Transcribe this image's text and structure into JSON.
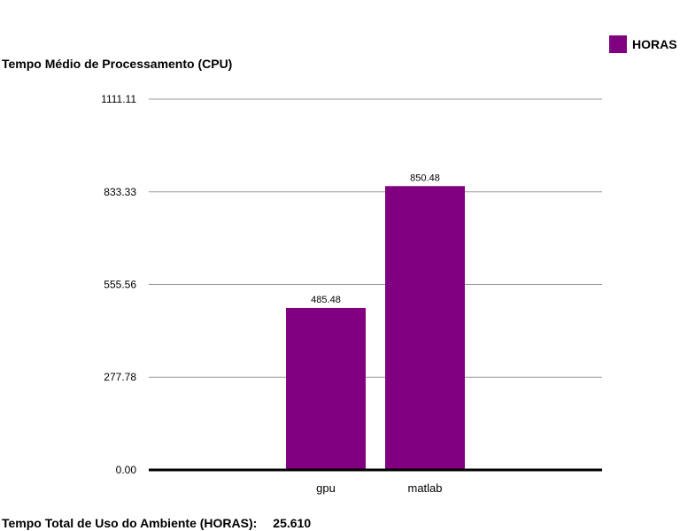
{
  "chart_data": {
    "type": "bar",
    "title": "Tempo Médio de Processamento (CPU)",
    "categories": [
      "gpu",
      "matlab"
    ],
    "series": [
      {
        "name": "HORAS",
        "values": [
          485.48,
          850.48
        ],
        "color": "#800080"
      }
    ],
    "value_labels": [
      "485.48",
      "850.48"
    ],
    "ylim": [
      0,
      1111.11
    ],
    "yticks": [
      "0.00",
      "277.78",
      "555.56",
      "833.33",
      "1111.11"
    ],
    "grid": true,
    "legend_position": "top-right"
  },
  "footer": {
    "label": "Tempo Total de Uso do Ambiente (HORAS):",
    "value": "25.610"
  }
}
